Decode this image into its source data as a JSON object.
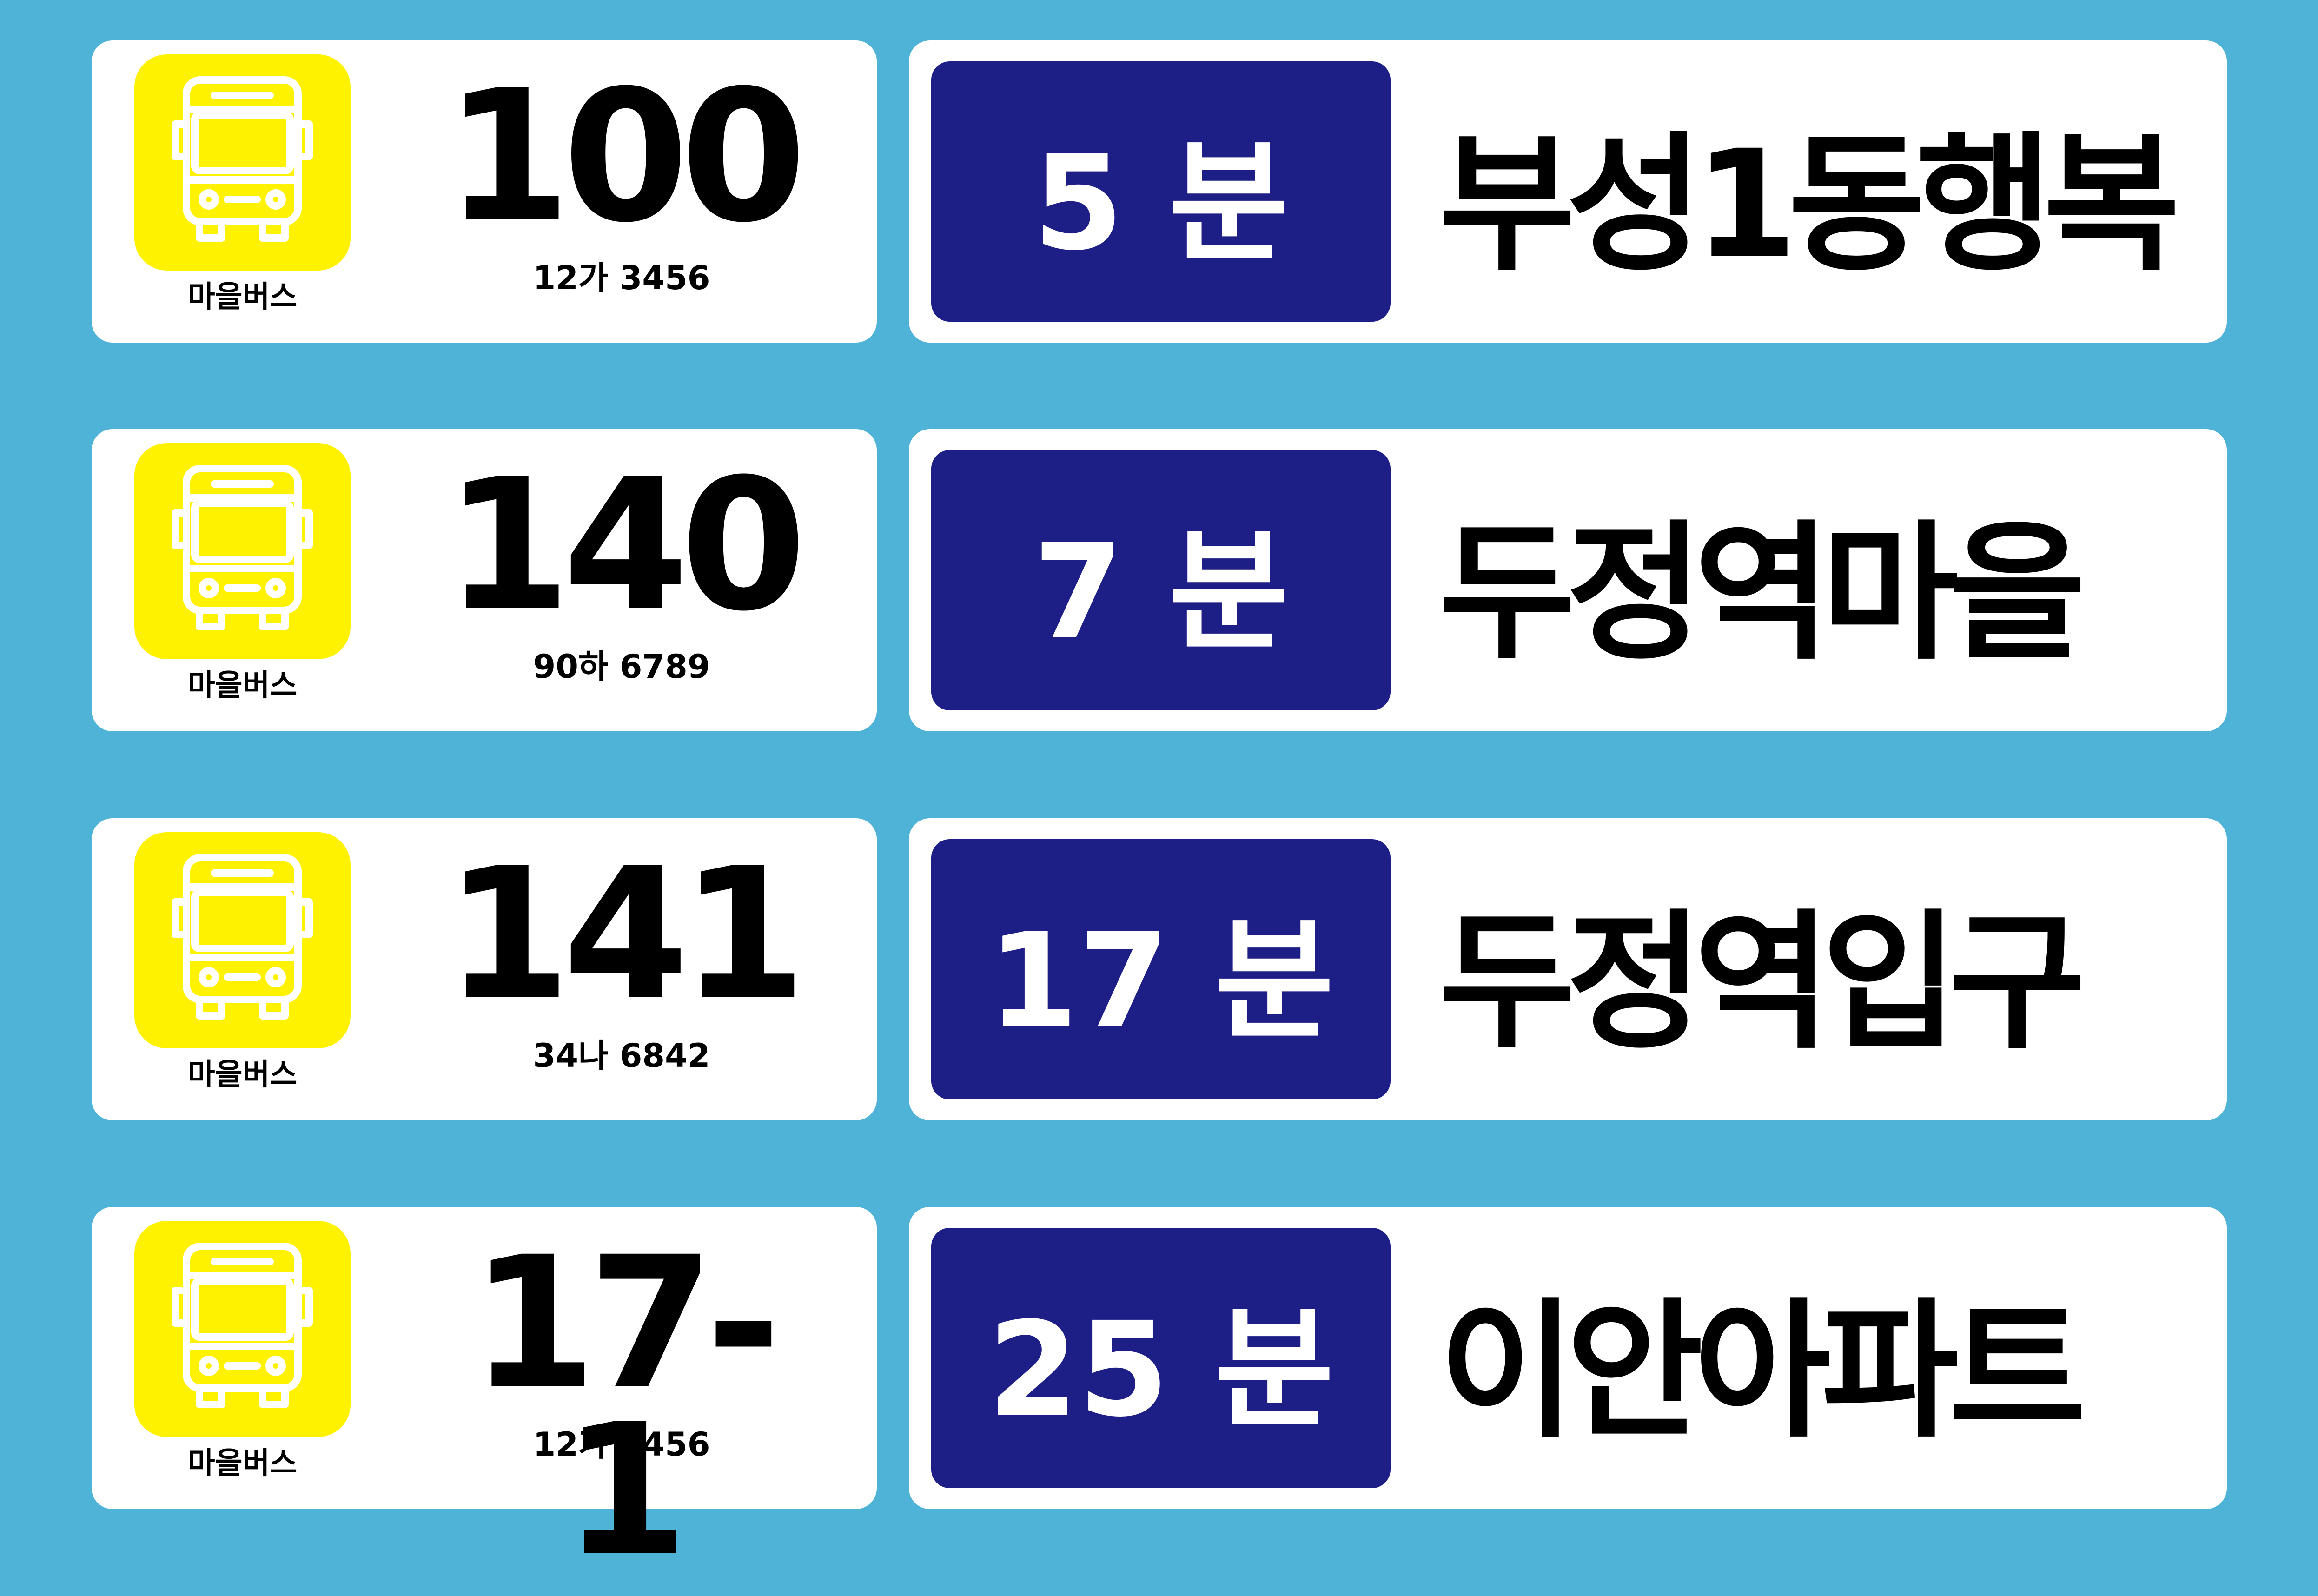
{
  "arrivals": [
    {
      "bus_type": "마을버스",
      "route": "100",
      "plate": "12가 3456",
      "minutes": "5",
      "unit": "분",
      "destination": "부성1동행복"
    },
    {
      "bus_type": "마을버스",
      "route": "140",
      "plate": "90하 6789",
      "minutes": "7",
      "unit": "분",
      "destination": "두정역마을"
    },
    {
      "bus_type": "마을버스",
      "route": "141",
      "plate": "34나 6842",
      "minutes": "17",
      "unit": "분",
      "destination": "두정역입구"
    },
    {
      "bus_type": "마을버스",
      "route": "17-1",
      "plate": "12가 3456",
      "minutes": "25",
      "unit": "분",
      "destination": "이안아파트"
    }
  ],
  "colors": {
    "background": "#4fb3d8",
    "card": "#ffffff",
    "icon_tile": "#fff200",
    "time_box": "#1e1e87"
  },
  "icons": {
    "bus": "bus-icon"
  }
}
